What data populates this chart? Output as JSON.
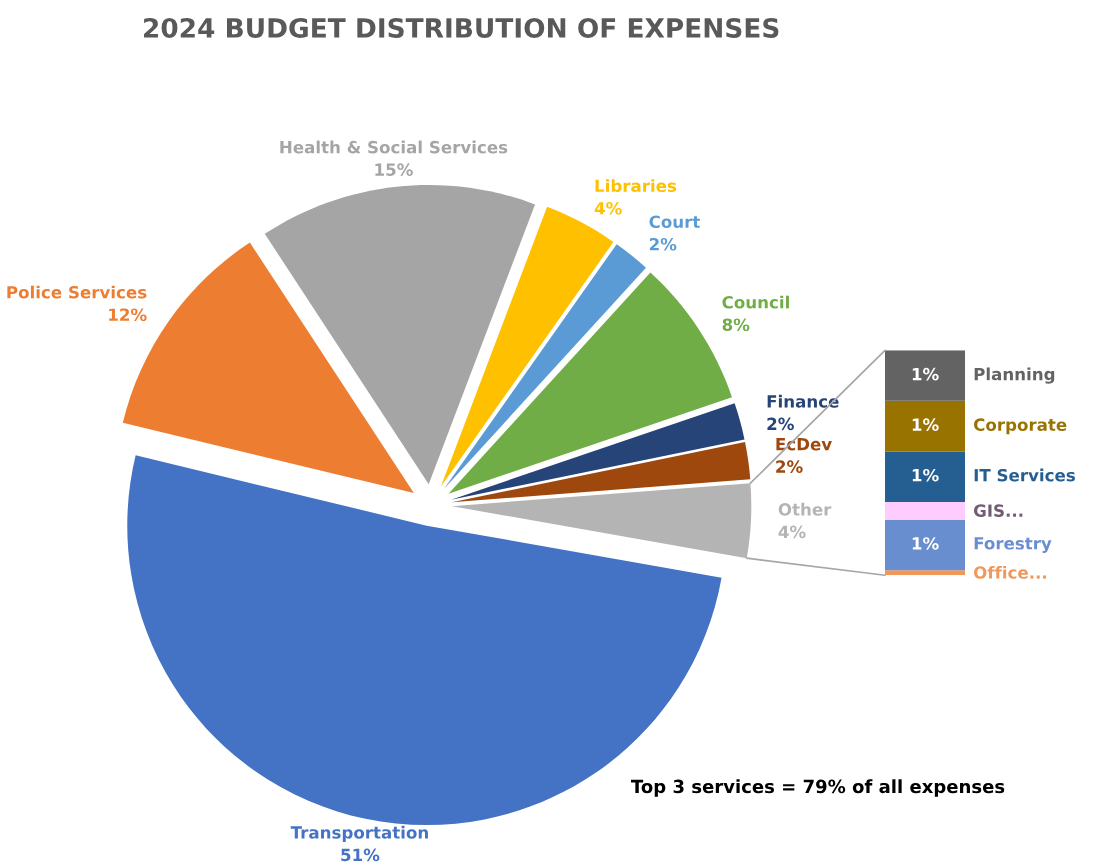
{
  "chart_data": [
    {
      "type": "pie",
      "title": "2024 BUDGET DISTRIBUTION OF EXPENSES",
      "categories": [
        "Transportation",
        "Police Services",
        "Health & Social Services",
        "Libraries",
        "Court",
        "Council",
        "Finance",
        "EcDev",
        "Other"
      ],
      "values": [
        51,
        12,
        15,
        4,
        2,
        8,
        2,
        2,
        4
      ],
      "value_labels": [
        "51%",
        "12%",
        "15%",
        "4%",
        "2%",
        "8%",
        "2%",
        "2%",
        "4%"
      ],
      "colors": [
        "#4472c4",
        "#ed7d31",
        "#a5a5a5",
        "#ffc000",
        "#5b9bd5",
        "#70ad47",
        "#264478",
        "#9e480e",
        "#b4b4b4"
      ],
      "annotations": [
        {
          "text": "Top 3 services = 79% of all expenses"
        }
      ]
    },
    {
      "type": "bar",
      "stacked": true,
      "tick_labels": false,
      "categories": [
        null
      ],
      "series": [
        {
          "name": "Office...",
          "color": "#f1975a",
          "values": [
            0.1
          ],
          "value_labels": [
            null
          ]
        },
        {
          "name": "Forestry",
          "color": "#698ed0",
          "values": [
            1
          ],
          "value_labels": [
            "1%"
          ]
        },
        {
          "name": "GIS...",
          "color": "#ffccff",
          "values": [
            0.35
          ],
          "value_labels": [
            null
          ]
        },
        {
          "name": "IT Services",
          "color": "#255e91",
          "values": [
            1
          ],
          "value_labels": [
            "1%"
          ]
        },
        {
          "name": "Corporate",
          "color": "#997300",
          "values": [
            1
          ],
          "value_labels": [
            "1%"
          ]
        },
        {
          "name": "Planning",
          "color": "#636363",
          "values": [
            1
          ],
          "value_labels": [
            "1%"
          ]
        }
      ]
    }
  ]
}
